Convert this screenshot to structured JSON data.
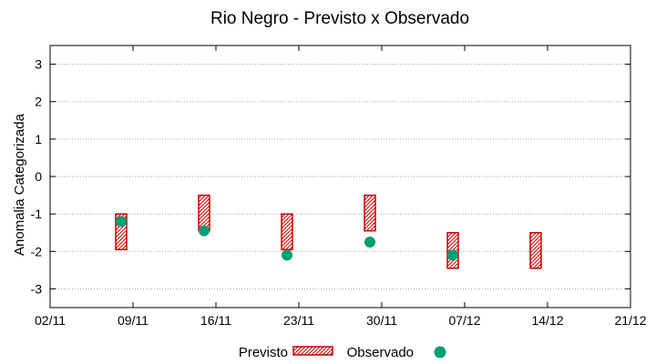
{
  "chart_data": {
    "type": "scatter",
    "title": "Rio Negro - Previsto x Observado",
    "xlabel": "",
    "ylabel": "Anomalia Categorizada",
    "xlim": [
      0,
      49
    ],
    "ylim": [
      -3.5,
      3.5
    ],
    "x_ticks": [
      {
        "day": 0,
        "label": "02/11"
      },
      {
        "day": 7,
        "label": "09/11"
      },
      {
        "day": 14,
        "label": "16/11"
      },
      {
        "day": 21,
        "label": "23/11"
      },
      {
        "day": 28,
        "label": "30/11"
      },
      {
        "day": 35,
        "label": "07/12"
      },
      {
        "day": 42,
        "label": "14/12"
      },
      {
        "day": 49,
        "label": "21/12"
      }
    ],
    "y_ticks": [
      3,
      2,
      1,
      0,
      -1,
      -2,
      -3
    ],
    "y_tick_labels": [
      "3",
      "2",
      "1",
      "0",
      "-1",
      "-2",
      "-3"
    ],
    "grid": "horizontal dotted",
    "series": [
      {
        "name": "Previsto",
        "kind": "range",
        "color": "#cc0000",
        "points": [
          {
            "day": 6,
            "low": -1.95,
            "high": -1.0
          },
          {
            "day": 13,
            "low": -1.45,
            "high": -0.5
          },
          {
            "day": 20,
            "low": -1.95,
            "high": -1.0
          },
          {
            "day": 27,
            "low": -1.45,
            "high": -0.5
          },
          {
            "day": 34,
            "low": -2.45,
            "high": -1.5
          },
          {
            "day": 41,
            "low": -2.45,
            "high": -1.5
          }
        ]
      },
      {
        "name": "Observado",
        "kind": "point",
        "color": "#009e73",
        "points": [
          {
            "day": 6,
            "value": -1.2
          },
          {
            "day": 13,
            "value": -1.45
          },
          {
            "day": 20,
            "value": -2.1
          },
          {
            "day": 27,
            "value": -1.75
          },
          {
            "day": 34,
            "value": -2.1
          }
        ]
      }
    ],
    "legend": {
      "position": "bottom-center",
      "entries": [
        "Previsto",
        "Observado"
      ]
    }
  }
}
